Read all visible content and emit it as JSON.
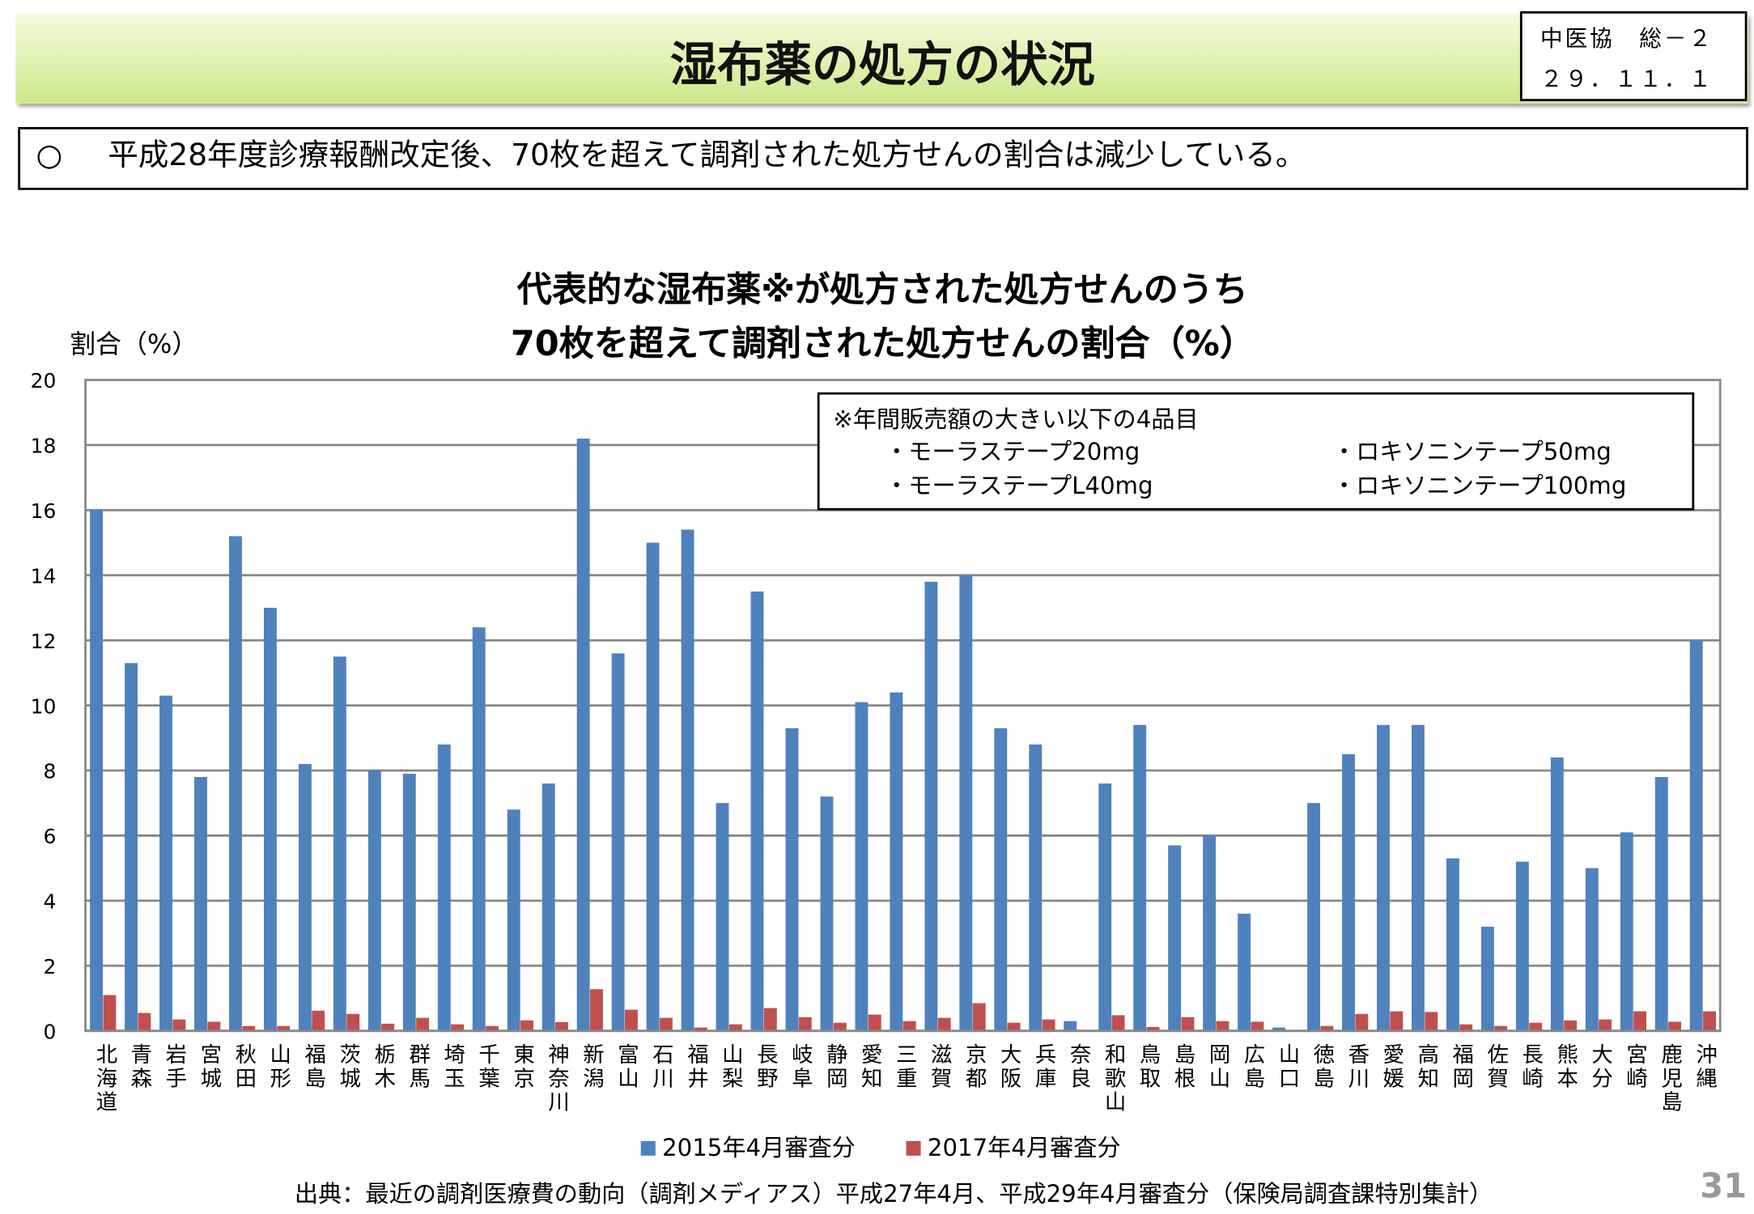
{
  "header": {
    "title": "湿布薬の処方の状況",
    "stamp_line1": "中医協　総－２",
    "stamp_line2": "２９．１１．１"
  },
  "bullet": {
    "mark": "○",
    "text": "平成28年度診療報酬改定後、70枚を超えて調剤された処方せんの割合は減少している。"
  },
  "note": {
    "title": "※年間販売額の大きい以下の4品目",
    "items": [
      "・モーラステープ20mg",
      "・モーラステープL40mg",
      "・ロキソニンテープ50mg",
      "・ロキソニンテープ100mg"
    ]
  },
  "source": "出典：最近の調剤医療費の動向（調剤メディアス）平成27年4月、平成29年4月審査分（保険局調査課特別集計）",
  "page_number": "31",
  "chart_data": {
    "type": "bar",
    "title": [
      "代表的な湿布薬※が処方された処方せんのうち",
      "70枚を超えて調剤された処方せんの割合（%）"
    ],
    "ylabel": "割合（%）",
    "xlabel": "",
    "ylim": [
      0,
      20
    ],
    "yticks": [
      "0",
      "2",
      "4",
      "6",
      "8",
      "10",
      "12",
      "14",
      "16",
      "18",
      "20"
    ],
    "grid": true,
    "legend_position": "bottom",
    "categories": [
      "北海道",
      "青森",
      "岩手",
      "宮城",
      "秋田",
      "山形",
      "福島",
      "茨城",
      "栃木",
      "群馬",
      "埼玉",
      "千葉",
      "東京",
      "神奈川",
      "新潟",
      "富山",
      "石川",
      "福井",
      "山梨",
      "長野",
      "岐阜",
      "静岡",
      "愛知",
      "三重",
      "滋賀",
      "京都",
      "大阪",
      "兵庫",
      "奈良",
      "和歌山",
      "鳥取",
      "島根",
      "岡山",
      "広島",
      "山口",
      "徳島",
      "香川",
      "愛媛",
      "高知",
      "福岡",
      "佐賀",
      "長崎",
      "熊本",
      "大分",
      "宮崎",
      "鹿児島",
      "沖縄"
    ],
    "series": [
      {
        "name": "2015年4月審査分",
        "color": "#4f81bd",
        "values": [
          16.0,
          11.3,
          10.3,
          7.8,
          15.2,
          13.0,
          8.2,
          11.5,
          8.0,
          7.9,
          8.8,
          12.4,
          6.8,
          7.6,
          18.2,
          11.6,
          15.0,
          15.4,
          7.0,
          13.5,
          9.3,
          7.2,
          10.1,
          10.4,
          13.8,
          14.0,
          9.3,
          8.8,
          0.3,
          7.6,
          9.4,
          5.7,
          6.0,
          3.6,
          0.1,
          7.0,
          8.5,
          9.4,
          9.4,
          5.3,
          3.2,
          5.2,
          8.4,
          5.0,
          6.1,
          7.8,
          12.0
        ]
      },
      {
        "name": "2017年4月審査分",
        "color": "#c0504d",
        "values": [
          1.1,
          0.55,
          0.35,
          0.28,
          0.15,
          0.15,
          0.62,
          0.52,
          0.22,
          0.4,
          0.2,
          0.15,
          0.32,
          0.27,
          1.28,
          0.65,
          0.4,
          0.1,
          0.2,
          0.7,
          0.42,
          0.25,
          0.5,
          0.3,
          0.4,
          0.85,
          0.25,
          0.35,
          0.0,
          0.48,
          0.12,
          0.42,
          0.3,
          0.28,
          0.0,
          0.15,
          0.52,
          0.6,
          0.58,
          0.2,
          0.15,
          0.25,
          0.32,
          0.35,
          0.6,
          0.28,
          0.6
        ]
      }
    ]
  }
}
